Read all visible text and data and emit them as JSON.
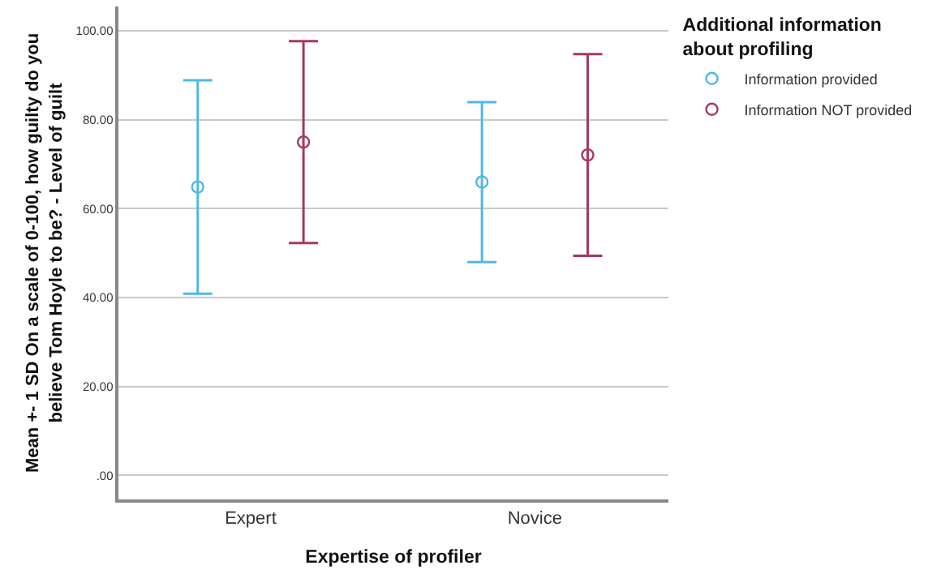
{
  "chart_data": {
    "type": "scatter",
    "xlabel": "Expertise of profiler",
    "ylabel": "Mean +- 1 SD On a scale of 0-100, how guilty do you believe Tom Hoyle to be? - Level of guilt",
    "legend_title": "Additional information about profiling",
    "categories": [
      "Expert",
      "Novice"
    ],
    "series": [
      {
        "name": "Information provided",
        "color": "#4fb8e8",
        "values": [
          64.9,
          66.0
        ],
        "errors": [
          24.0,
          18.0
        ]
      },
      {
        "name": "Information NOT provided",
        "color": "#a8375e",
        "values": [
          75.0,
          72.1
        ],
        "errors": [
          22.7,
          22.7
        ]
      }
    ],
    "ylim": [
      -5.4,
      105.5
    ],
    "yticks": [
      {
        "value": 0,
        "label": ".00"
      },
      {
        "value": 20,
        "label": "20.00"
      },
      {
        "value": 40,
        "label": "40.00"
      },
      {
        "value": 60,
        "label": "60.00"
      },
      {
        "value": 80,
        "label": "80.00"
      },
      {
        "value": 100,
        "label": "100.00"
      }
    ],
    "grid": "y",
    "legend": "top right",
    "marker": "circle"
  }
}
